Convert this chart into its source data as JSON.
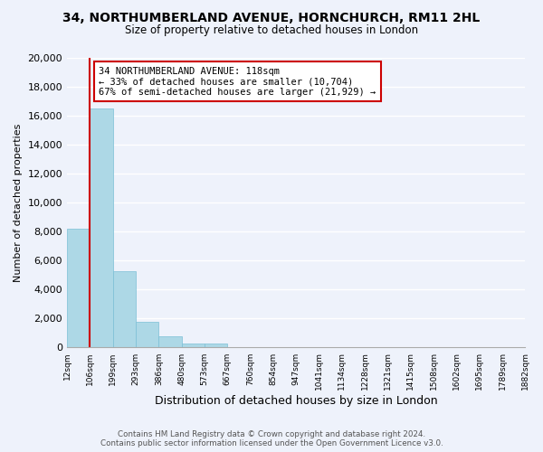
{
  "title": "34, NORTHUMBERLAND AVENUE, HORNCHURCH, RM11 2HL",
  "subtitle": "Size of property relative to detached houses in London",
  "xlabel": "Distribution of detached houses by size in London",
  "ylabel": "Number of detached properties",
  "bar_values": [
    8200,
    16500,
    5300,
    1750,
    800,
    300,
    270,
    0,
    0,
    0,
    0,
    0,
    0,
    0,
    0,
    0,
    0,
    0,
    0,
    0
  ],
  "bar_labels": [
    "12sqm",
    "106sqm",
    "199sqm",
    "293sqm",
    "386sqm",
    "480sqm",
    "573sqm",
    "667sqm",
    "760sqm",
    "854sqm",
    "947sqm",
    "1041sqm",
    "1134sqm",
    "1228sqm",
    "1321sqm",
    "1415sqm",
    "1508sqm",
    "1602sqm",
    "1695sqm",
    "1789sqm",
    "1882sqm"
  ],
  "bar_color": "#add8e6",
  "bar_edge_color": "#7bbfd6",
  "property_line_color": "#cc0000",
  "annotation_title": "34 NORTHUMBERLAND AVENUE: 118sqm",
  "annotation_line1": "← 33% of detached houses are smaller (10,704)",
  "annotation_line2": "67% of semi-detached houses are larger (21,929) →",
  "annotation_box_color": "#ffffff",
  "annotation_box_edge": "#cc0000",
  "ylim": [
    0,
    20000
  ],
  "yticks": [
    0,
    2000,
    4000,
    6000,
    8000,
    10000,
    12000,
    14000,
    16000,
    18000,
    20000
  ],
  "footer_line1": "Contains HM Land Registry data © Crown copyright and database right 2024.",
  "footer_line2": "Contains public sector information licensed under the Open Government Licence v3.0.",
  "bg_color": "#eef2fb",
  "plot_bg_color": "#eef2fb"
}
